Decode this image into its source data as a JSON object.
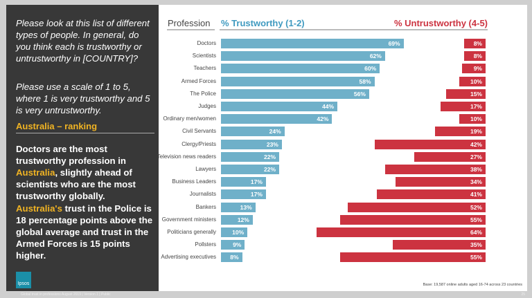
{
  "left_panel": {
    "question": "Please look at this list of different types of people. In general, do you think each is trustworthy or untrustworthy in [COUNTRY]?",
    "scale": "Please use a scale of 1 to 5, where 1 is very trustworthy and 5 is very untrustworthy.",
    "ranking_title": "Australia – ranking",
    "finding1_a": "Doctors are the most trustworthy profession in ",
    "finding1_country": "Australia",
    "finding1_b": ", slightly ahead of scientists who are the most trustworthy globally.",
    "finding2_country": "Australia's",
    "finding2_b": " trust in the Police is 18 percentage points above the global average and trust in the Armed Forces is 15 points higher.",
    "logo": "Ipsos"
  },
  "footer": {
    "text": "Global trust in professions August 2019 | Version 1 | Public",
    "page": "25",
    "base": "Base: 19,587 online adults aged 16-74 across 23 countries"
  },
  "chart_data": {
    "type": "bar",
    "headers": {
      "category": "Profession",
      "trust": "% Trustworthy (1-2)",
      "untrust": "% Untrustworthy (4-5)"
    },
    "colors": {
      "trust": "#6fb0c9",
      "untrust": "#cc3340",
      "header_trust": "#3f9ac0",
      "header_untrust": "#cc3340",
      "highlight": "#f0b323"
    },
    "categories": [
      "Doctors",
      "Scientists",
      "Teachers",
      "Armed Forces",
      "The Police",
      "Judges",
      "Ordinary men/women",
      "Civil Servants",
      "Clergy/Priests",
      "Television news readers",
      "Lawyers",
      "Business Leaders",
      "Journalists",
      "Bankers",
      "Government ministers",
      "Politicians generally",
      "Pollsters",
      "Advertising executives"
    ],
    "series": [
      {
        "name": "% Trustworthy (1-2)",
        "values": [
          69,
          62,
          60,
          58,
          56,
          44,
          42,
          24,
          23,
          22,
          22,
          17,
          17,
          13,
          12,
          10,
          9,
          8
        ]
      },
      {
        "name": "% Untrustworthy (4-5)",
        "values": [
          8,
          8,
          9,
          10,
          15,
          17,
          10,
          19,
          42,
          27,
          38,
          34,
          41,
          52,
          55,
          64,
          35,
          55
        ]
      }
    ]
  }
}
